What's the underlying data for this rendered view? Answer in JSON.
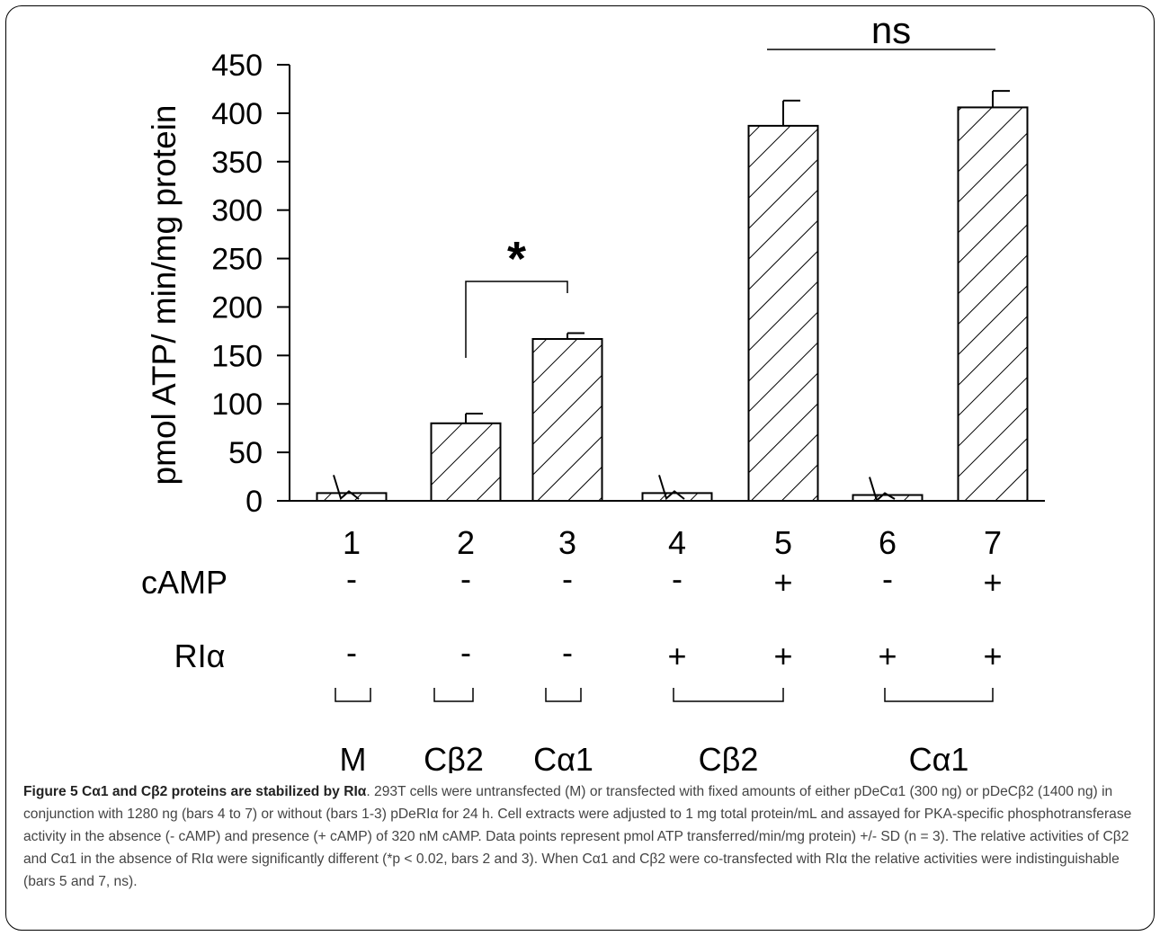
{
  "chart_data": {
    "type": "bar",
    "categories": [
      "1",
      "2",
      "3",
      "4",
      "5",
      "6",
      "7"
    ],
    "values": [
      8,
      80,
      167,
      8,
      387,
      6,
      406
    ],
    "errors": [
      0,
      10,
      6,
      0,
      26,
      0,
      17
    ],
    "ylabel": "pmol ATP/ min/mg protein",
    "ylim": [
      0,
      450
    ],
    "yticks": [
      0,
      50,
      100,
      150,
      200,
      250,
      300,
      350,
      400,
      450
    ],
    "rows": [
      {
        "label": "cAMP",
        "values": [
          "-",
          "-",
          "-",
          "-",
          "+",
          "-",
          "+"
        ]
      },
      {
        "label": "RIα",
        "values": [
          "-",
          "-",
          "-",
          "+",
          "+",
          "+",
          "+"
        ]
      }
    ],
    "groups": [
      "M",
      "Cβ2",
      "Cα1",
      "Cβ2",
      "Cα1"
    ],
    "annotations": [
      {
        "text": "*",
        "between": [
          2,
          3
        ]
      },
      {
        "text": "ns",
        "between": [
          5,
          7
        ]
      }
    ]
  },
  "caption": {
    "label": "Figure 5 Cα1 and Cβ2 proteins are stabilized by RIα",
    "text": ". 293T cells were untransfected (M) or transfected with fixed amounts of either pDeCα1 (300 ng) or pDeCβ2 (1400 ng) in conjunction with 1280 ng (bars 4 to 7) or without (bars 1-3) pDeRIα for 24 h. Cell extracts were adjusted to 1 mg total protein/mL and assayed for PKA-specific phosphotransferase activity in the absence (- cAMP) and presence (+ cAMP) of 320 nM cAMP. Data points represent pmol ATP transferred/min/mg protein) +/- SD (n = 3). The relative activities of Cβ2 and Cα1 in the absence of RIα were significantly different (*p < 0.02, bars 2 and 3). When Cα1 and Cβ2 were co-transfected with RIα the relative activities were indistinguishable (bars 5 and 7, ns)."
  }
}
